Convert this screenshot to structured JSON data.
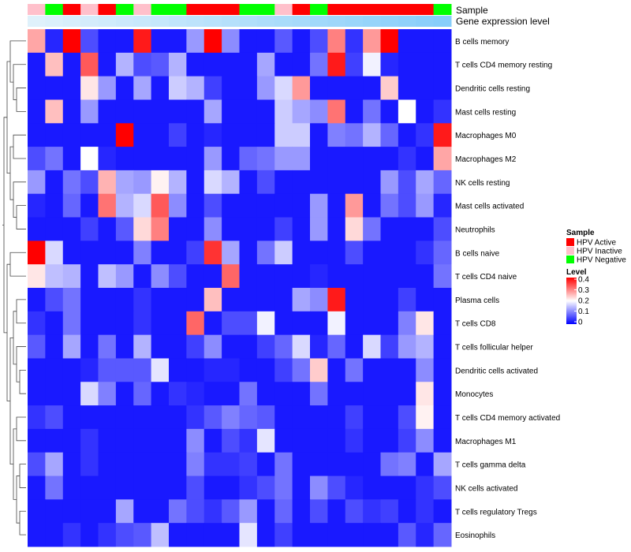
{
  "chart_data": {
    "type": "heatmap",
    "title": "",
    "annotation_labels": {
      "sample": "Sample",
      "gene_expression": "Gene expression level"
    },
    "rows": [
      "B cells memory",
      "T cells CD4 memory resting",
      "Dendritic cells resting",
      "Mast cells resting",
      "Macrophages M0",
      "Macrophages M2",
      "NK cells resting",
      "Mast cells activated",
      "Neutrophils",
      "B cells naive",
      "T cells CD4 naive",
      "Plasma cells",
      "T cells CD8",
      "T cells follicular helper",
      "Dendritic cells activated",
      "Monocytes",
      "T cells CD4 memory activated",
      "Macrophages M1",
      "T cells gamma delta",
      "NK cells activated",
      "T cells regulatory  Tregs",
      "Eosinophils"
    ],
    "sample_groups": [
      "HPV Inactive",
      "HPV Negative",
      "HPV Active",
      "HPV Inactive",
      "HPV Active",
      "HPV Negative",
      "HPV Inactive",
      "HPV Negative",
      "HPV Negative",
      "HPV Active",
      "HPV Active",
      "HPV Active",
      "HPV Negative",
      "HPV Negative",
      "HPV Inactive",
      "HPV Active",
      "HPV Negative",
      "HPV Active",
      "HPV Active",
      "HPV Active",
      "HPV Active",
      "HPV Active",
      "HPV Active",
      "HPV Negative"
    ],
    "gene_expression_level": [
      0.0,
      0.04,
      0.09,
      0.13,
      0.17,
      0.22,
      0.26,
      0.3,
      0.35,
      0.39,
      0.43,
      0.48,
      0.52,
      0.57,
      0.61,
      0.65,
      0.7,
      0.74,
      0.78,
      0.83,
      0.87,
      0.91,
      0.96,
      1.0
    ],
    "values": [
      [
        0.27,
        0.03,
        0.4,
        0.06,
        0.02,
        0.02,
        0.38,
        0.02,
        0.02,
        0.12,
        0.4,
        0.11,
        0.02,
        0.02,
        0.07,
        0.02,
        0.06,
        0.3,
        0.04,
        0.28,
        0.4,
        0.02,
        0.02,
        0.02
      ],
      [
        0.02,
        0.25,
        0.02,
        0.33,
        0.02,
        0.14,
        0.06,
        0.07,
        0.14,
        0.02,
        0.02,
        0.02,
        0.02,
        0.13,
        0.02,
        0.02,
        0.09,
        0.38,
        0.05,
        0.19,
        0.03,
        0.02,
        0.02,
        0.02
      ],
      [
        0.02,
        0.02,
        0.02,
        0.22,
        0.12,
        0.02,
        0.13,
        0.02,
        0.16,
        0.14,
        0.05,
        0.02,
        0.02,
        0.12,
        0.17,
        0.28,
        0.02,
        0.02,
        0.02,
        0.02,
        0.24,
        0.02,
        0.02,
        0.02
      ],
      [
        0.02,
        0.25,
        0.02,
        0.12,
        0.02,
        0.02,
        0.02,
        0.02,
        0.02,
        0.02,
        0.13,
        0.02,
        0.02,
        0.02,
        0.16,
        0.13,
        0.11,
        0.31,
        0.02,
        0.09,
        0.02,
        0.2,
        0.02,
        0.04
      ],
      [
        0.02,
        0.02,
        0.02,
        0.02,
        0.02,
        0.4,
        0.02,
        0.02,
        0.05,
        0.02,
        0.03,
        0.02,
        0.02,
        0.02,
        0.16,
        0.16,
        0.02,
        0.1,
        0.09,
        0.14,
        0.08,
        0.02,
        0.04,
        0.38
      ],
      [
        0.06,
        0.09,
        0.02,
        0.2,
        0.03,
        0.02,
        0.02,
        0.02,
        0.02,
        0.02,
        0.12,
        0.02,
        0.08,
        0.09,
        0.12,
        0.12,
        0.02,
        0.02,
        0.02,
        0.02,
        0.02,
        0.04,
        0.02,
        0.27
      ],
      [
        0.12,
        0.02,
        0.09,
        0.06,
        0.26,
        0.13,
        0.12,
        0.21,
        0.14,
        0.02,
        0.17,
        0.14,
        0.02,
        0.06,
        0.02,
        0.02,
        0.02,
        0.02,
        0.02,
        0.02,
        0.12,
        0.06,
        0.13,
        0.08
      ],
      [
        0.03,
        0.02,
        0.08,
        0.02,
        0.31,
        0.14,
        0.17,
        0.33,
        0.11,
        0.02,
        0.06,
        0.02,
        0.02,
        0.02,
        0.02,
        0.02,
        0.12,
        0.02,
        0.28,
        0.02,
        0.09,
        0.06,
        0.12,
        0.03
      ],
      [
        0.02,
        0.02,
        0.02,
        0.05,
        0.02,
        0.07,
        0.23,
        0.3,
        0.02,
        0.02,
        0.11,
        0.02,
        0.02,
        0.02,
        0.05,
        0.02,
        0.12,
        0.02,
        0.23,
        0.09,
        0.02,
        0.02,
        0.02,
        0.06
      ],
      [
        0.4,
        0.17,
        0.02,
        0.02,
        0.02,
        0.02,
        0.1,
        0.02,
        0.02,
        0.05,
        0.36,
        0.13,
        0.02,
        0.09,
        0.16,
        0.02,
        0.02,
        0.02,
        0.06,
        0.02,
        0.02,
        0.02,
        0.04,
        0.08
      ],
      [
        0.22,
        0.15,
        0.14,
        0.02,
        0.15,
        0.12,
        0.02,
        0.11,
        0.06,
        0.02,
        0.02,
        0.32,
        0.02,
        0.02,
        0.02,
        0.02,
        0.03,
        0.02,
        0.02,
        0.02,
        0.02,
        0.02,
        0.02,
        0.09
      ],
      [
        0.02,
        0.06,
        0.09,
        0.02,
        0.02,
        0.02,
        0.04,
        0.02,
        0.02,
        0.02,
        0.25,
        0.02,
        0.02,
        0.02,
        0.02,
        0.13,
        0.11,
        0.38,
        0.02,
        0.02,
        0.02,
        0.05,
        0.02,
        0.02
      ],
      [
        0.04,
        0.02,
        0.09,
        0.02,
        0.02,
        0.02,
        0.04,
        0.02,
        0.02,
        0.32,
        0.02,
        0.06,
        0.06,
        0.19,
        0.02,
        0.02,
        0.02,
        0.19,
        0.02,
        0.02,
        0.02,
        0.1,
        0.22,
        0.02
      ],
      [
        0.07,
        0.02,
        0.13,
        0.02,
        0.09,
        0.02,
        0.14,
        0.02,
        0.02,
        0.05,
        0.11,
        0.02,
        0.02,
        0.05,
        0.08,
        0.17,
        0.03,
        0.08,
        0.02,
        0.17,
        0.05,
        0.12,
        0.14,
        0.02
      ],
      [
        0.02,
        0.02,
        0.02,
        0.03,
        0.07,
        0.07,
        0.07,
        0.18,
        0.02,
        0.02,
        0.03,
        0.03,
        0.02,
        0.02,
        0.05,
        0.09,
        0.24,
        0.02,
        0.09,
        0.02,
        0.02,
        0.02,
        0.11,
        0.02
      ],
      [
        0.02,
        0.02,
        0.02,
        0.17,
        0.1,
        0.02,
        0.08,
        0.02,
        0.04,
        0.03,
        0.02,
        0.02,
        0.09,
        0.02,
        0.02,
        0.02,
        0.09,
        0.02,
        0.02,
        0.02,
        0.02,
        0.02,
        0.22,
        0.02
      ],
      [
        0.04,
        0.06,
        0.02,
        0.02,
        0.02,
        0.02,
        0.02,
        0.02,
        0.02,
        0.04,
        0.07,
        0.1,
        0.08,
        0.07,
        0.02,
        0.02,
        0.02,
        0.02,
        0.05,
        0.02,
        0.02,
        0.06,
        0.21,
        0.02
      ],
      [
        0.02,
        0.02,
        0.02,
        0.04,
        0.02,
        0.02,
        0.02,
        0.02,
        0.02,
        0.11,
        0.02,
        0.06,
        0.04,
        0.18,
        0.02,
        0.02,
        0.02,
        0.02,
        0.04,
        0.02,
        0.02,
        0.05,
        0.11,
        0.02
      ],
      [
        0.06,
        0.13,
        0.02,
        0.04,
        0.02,
        0.02,
        0.02,
        0.02,
        0.02,
        0.1,
        0.04,
        0.04,
        0.05,
        0.02,
        0.09,
        0.02,
        0.02,
        0.02,
        0.02,
        0.02,
        0.09,
        0.1,
        0.02,
        0.13
      ],
      [
        0.02,
        0.09,
        0.02,
        0.02,
        0.02,
        0.02,
        0.02,
        0.02,
        0.02,
        0.06,
        0.02,
        0.02,
        0.04,
        0.06,
        0.09,
        0.02,
        0.11,
        0.06,
        0.03,
        0.02,
        0.02,
        0.02,
        0.04,
        0.06
      ],
      [
        0.02,
        0.02,
        0.02,
        0.02,
        0.02,
        0.13,
        0.02,
        0.02,
        0.09,
        0.06,
        0.04,
        0.07,
        0.12,
        0.02,
        0.08,
        0.02,
        0.06,
        0.02,
        0.06,
        0.04,
        0.05,
        0.02,
        0.04,
        0.02
      ],
      [
        0.02,
        0.02,
        0.04,
        0.02,
        0.04,
        0.06,
        0.07,
        0.15,
        0.02,
        0.02,
        0.02,
        0.02,
        0.18,
        0.02,
        0.05,
        0.02,
        0.02,
        0.02,
        0.02,
        0.02,
        0.02,
        0.07,
        0.03,
        0.08
      ]
    ],
    "legend": {
      "sample_title": "Sample",
      "sample_items": [
        {
          "label": "HPV Active",
          "color": "#ff0000"
        },
        {
          "label": "HPV Inactive",
          "color": "#ffc0cb"
        },
        {
          "label": "HPV Negative",
          "color": "#00ff00"
        }
      ],
      "level_title": "Level",
      "level_ticks": [
        "0.4",
        "0.3",
        "0.2",
        "0.1",
        "0"
      ],
      "level_range": [
        0,
        0.4
      ],
      "placement": "right"
    },
    "colors": {
      "low": "#0000ff",
      "mid": "#ffffff",
      "high": "#ff0000",
      "gene_low": "#dff1fb",
      "gene_high": "#87cefa"
    }
  }
}
